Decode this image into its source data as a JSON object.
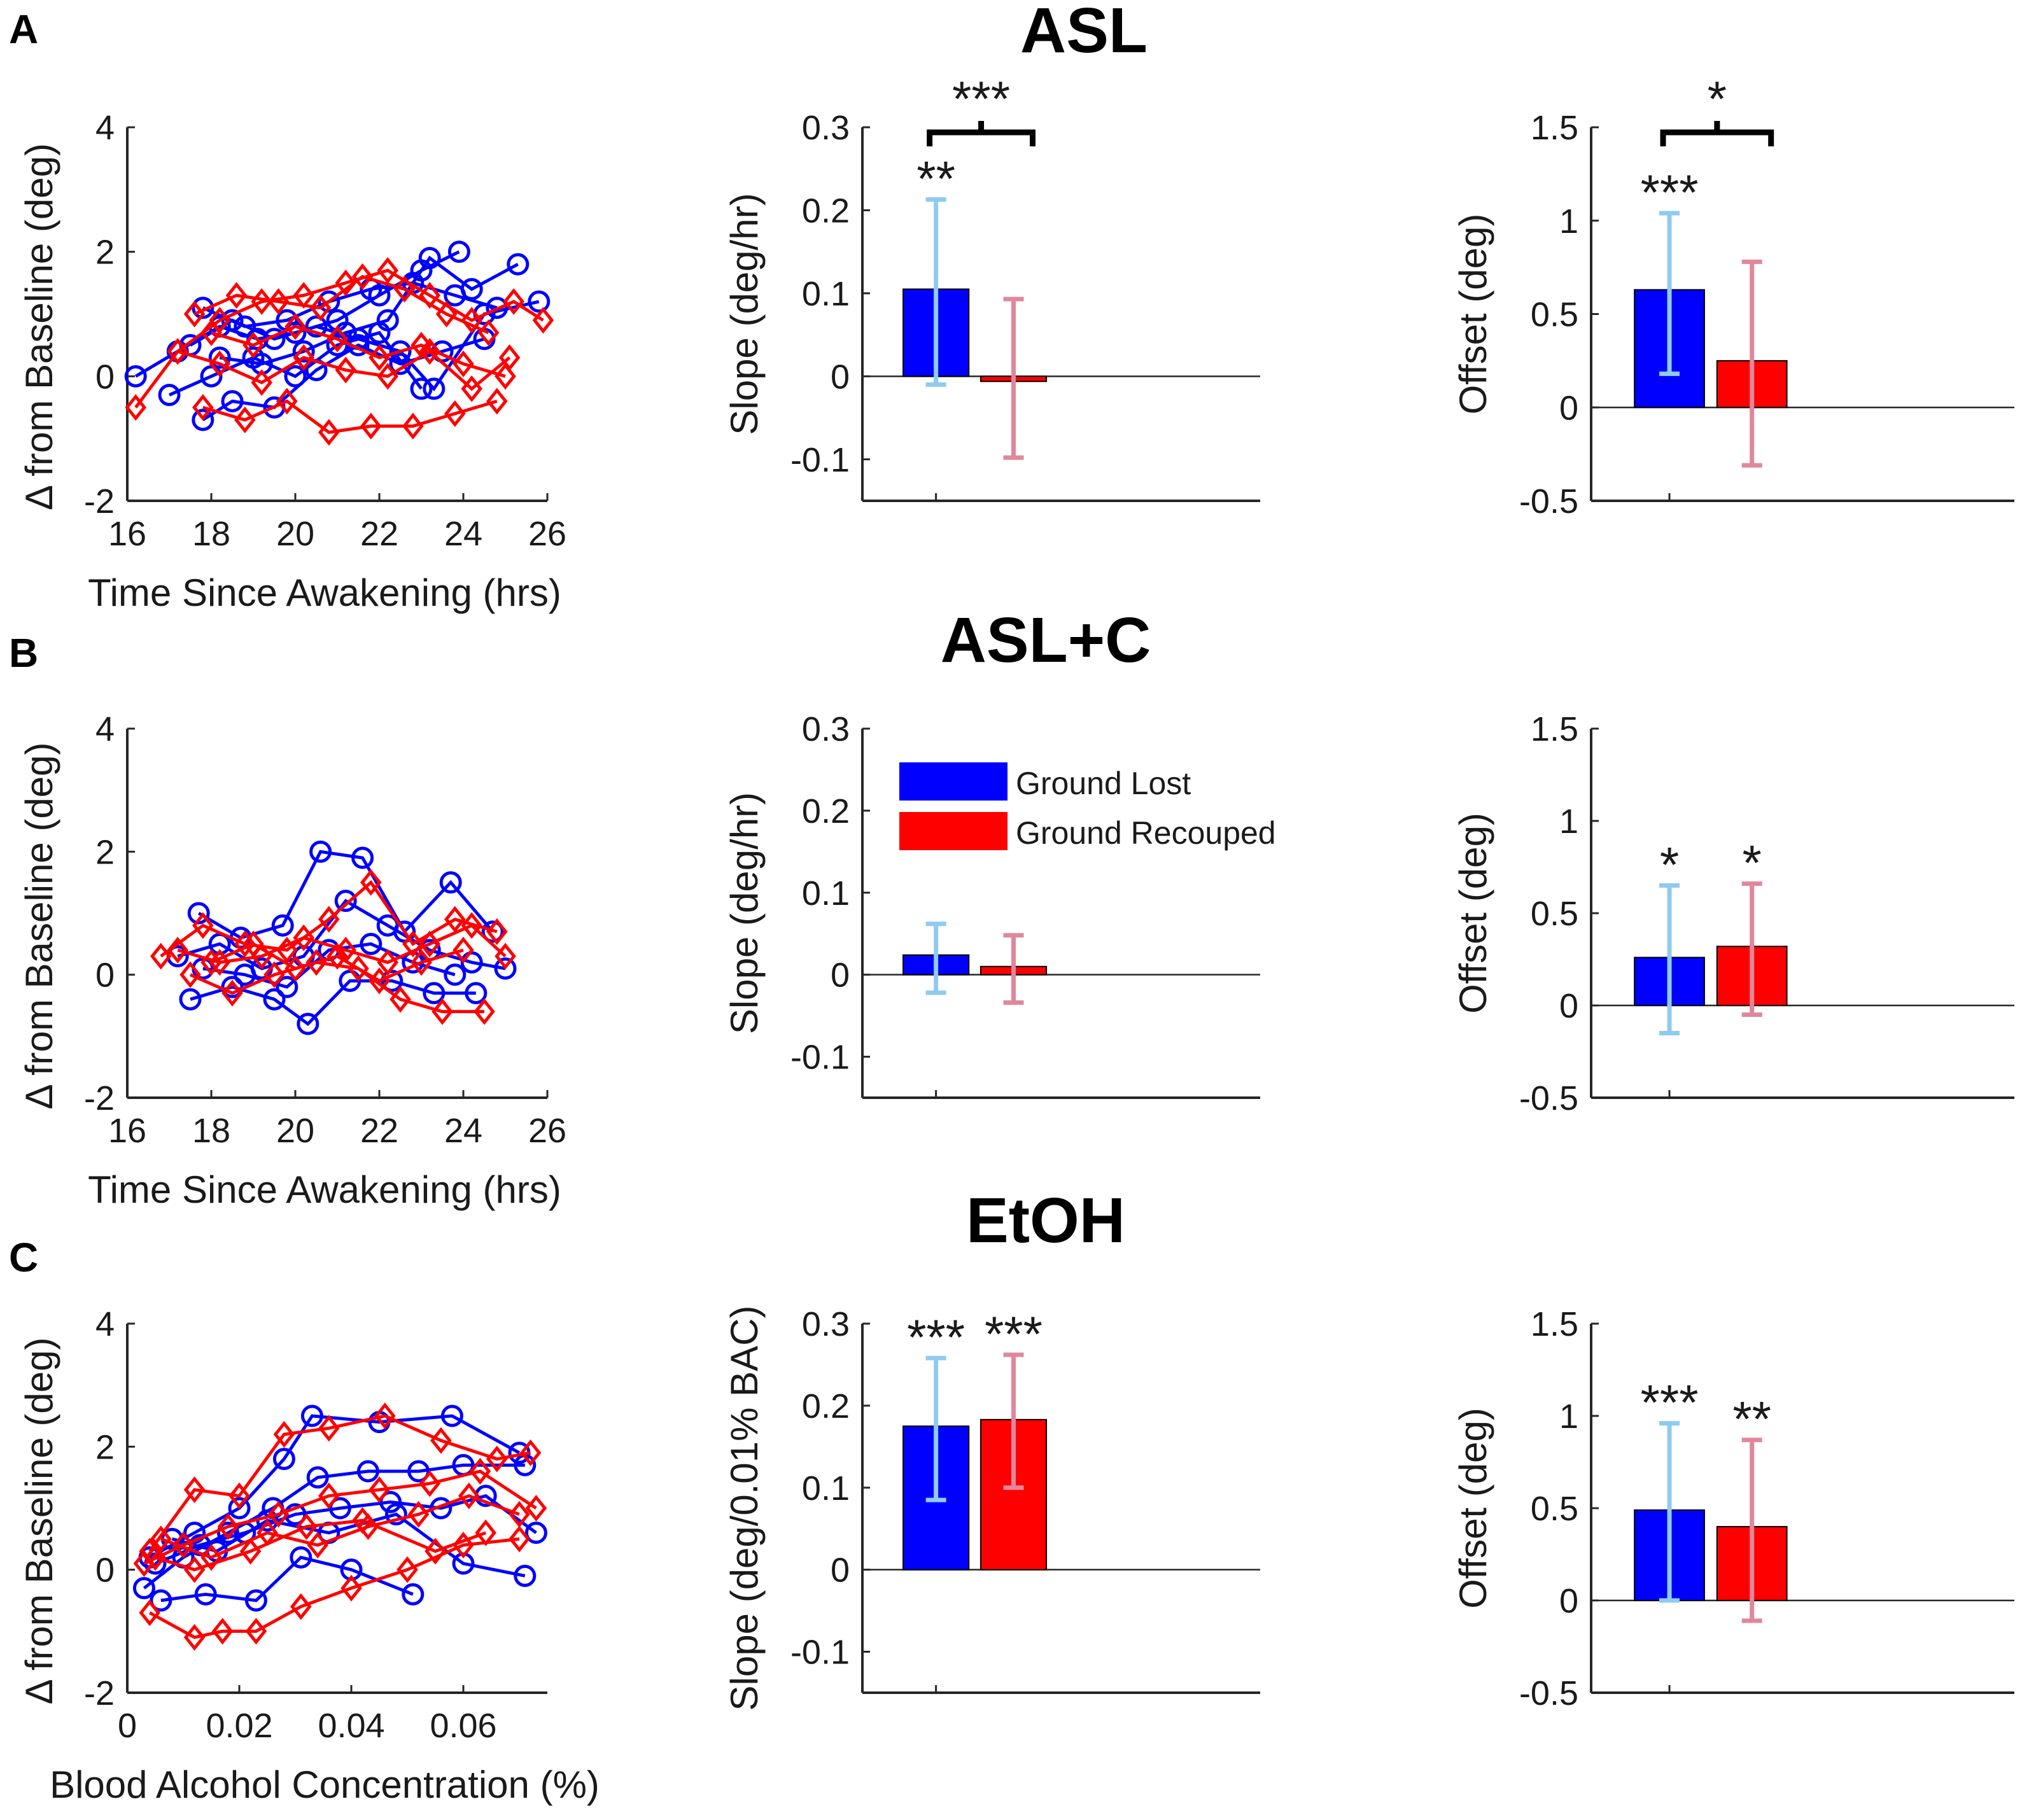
{
  "figure": {
    "alt": "Three rows of panels: ASL, ASL+C, EtOH"
  },
  "legend": {
    "entries": [
      {
        "label": "Ground Lost",
        "color": "#0000ff"
      },
      {
        "label": "Ground Recouped",
        "color": "#ff0000"
      }
    ]
  },
  "colors": {
    "lost": "#0000ff",
    "recouped": "#ff0000",
    "lost_err": "#8fcbef",
    "recouped_err": "#e0879c"
  },
  "chart_data": [
    {
      "id": "A-scatter",
      "panel": "A",
      "row_title": "ASL",
      "type": "line",
      "xlabel": "Time Since Awakening (hrs)",
      "ylabel": "Δ from Baseline (deg)",
      "xlim": [
        16,
        26
      ],
      "ylim": [
        -2,
        4
      ],
      "xticks": [
        "16",
        "18",
        "20",
        "22",
        "24",
        "26"
      ],
      "yticks": [
        "-2",
        "0",
        "2",
        "4"
      ],
      "series": [
        {
          "name": "Ground Lost",
          "color": "#0000ff",
          "marker": "circle",
          "x": [
            16.2,
            17.2,
            18.2,
            19.1,
            20.0,
            21.0,
            22.0,
            23.0,
            23.9
          ],
          "y": [
            0.0,
            0.4,
            0.8,
            0.6,
            0.7,
            0.9,
            1.3,
            1.7,
            2.0
          ]
        },
        {
          "name": "Ground Lost",
          "color": "#0000ff",
          "marker": "circle",
          "x": [
            17.8,
            18.8,
            19.8,
            20.8,
            21.8,
            22.8,
            23.8,
            24.8
          ],
          "y": [
            1.1,
            0.8,
            0.9,
            1.2,
            1.4,
            1.5,
            1.3,
            1.1
          ]
        },
        {
          "name": "Ground Lost",
          "color": "#0000ff",
          "marker": "circle",
          "x": [
            17.8,
            18.5,
            19.5,
            20.5,
            21.5,
            22.5,
            23.5,
            24.5
          ],
          "y": [
            -0.7,
            -0.4,
            -0.5,
            0.1,
            0.5,
            0.2,
            0.4,
            0.6
          ]
        },
        {
          "name": "Ground Lost",
          "color": "#0000ff",
          "marker": "circle",
          "x": [
            18.2,
            19.2,
            20.2,
            21.2,
            22.2,
            23.2,
            24.2,
            25.3
          ],
          "y": [
            0.3,
            0.2,
            0.4,
            0.7,
            0.9,
            1.9,
            1.4,
            1.8
          ]
        },
        {
          "name": "Ground Lost",
          "color": "#0000ff",
          "marker": "circle",
          "x": [
            17.5,
            18.5,
            19.5,
            20.5,
            21.5,
            22.5,
            23.3,
            24.5,
            25.8
          ],
          "y": [
            0.5,
            0.9,
            0.6,
            0.8,
            0.6,
            0.4,
            -0.2,
            1.0,
            1.2
          ]
        },
        {
          "name": "Ground Lost",
          "color": "#0000ff",
          "marker": "circle",
          "x": [
            17.0,
            18.0,
            19.0,
            20.0,
            21.0,
            22.0,
            23.0
          ],
          "y": [
            -0.3,
            0.0,
            0.3,
            0.0,
            0.5,
            0.7,
            -0.2
          ]
        },
        {
          "name": "Ground Recouped",
          "color": "#ff0000",
          "marker": "diamond",
          "x": [
            16.2,
            17.2,
            18.2,
            19.2,
            20.2,
            21.2,
            22.2,
            23.2,
            24.2,
            25.2,
            25.9
          ],
          "y": [
            -0.5,
            0.4,
            0.9,
            1.2,
            1.3,
            1.5,
            1.7,
            1.3,
            0.9,
            1.2,
            0.9
          ]
        },
        {
          "name": "Ground Recouped",
          "color": "#ff0000",
          "marker": "diamond",
          "x": [
            17.6,
            18.6,
            19.6,
            20.6,
            21.6,
            22.6,
            23.6,
            24.6
          ],
          "y": [
            1.0,
            1.3,
            1.2,
            1.1,
            1.6,
            1.4,
            1.0,
            0.7
          ]
        },
        {
          "name": "Ground Recouped",
          "color": "#ff0000",
          "marker": "diamond",
          "x": [
            17.8,
            18.8,
            19.8,
            20.8,
            21.8,
            22.8,
            23.8,
            24.8
          ],
          "y": [
            -0.5,
            -0.7,
            -0.4,
            -0.9,
            -0.8,
            -0.8,
            -0.6,
            -0.4
          ]
        },
        {
          "name": "Ground Recouped",
          "color": "#ff0000",
          "marker": "diamond",
          "x": [
            17.2,
            18.2,
            19.2,
            20.2,
            21.2,
            22.2,
            23.2,
            24.2,
            25.1
          ],
          "y": [
            0.4,
            0.2,
            -0.1,
            0.3,
            0.1,
            0.0,
            0.4,
            -0.2,
            0.3
          ]
        },
        {
          "name": "Ground Recouped",
          "color": "#ff0000",
          "marker": "diamond",
          "x": [
            18.0,
            19.0,
            20.0,
            21.0,
            22.0,
            23.0,
            24.0,
            25.0
          ],
          "y": [
            0.7,
            0.5,
            0.8,
            0.6,
            0.3,
            0.5,
            0.2,
            0.0
          ]
        }
      ]
    },
    {
      "id": "A-slope",
      "panel": "A",
      "type": "bar",
      "ylabel": "Slope (deg/hr)",
      "ylim": [
        -0.15,
        0.3
      ],
      "yticks": [
        "-0.1",
        "0",
        "0.1",
        "0.2",
        "0.3"
      ],
      "series": [
        {
          "name": "Ground Lost",
          "value": 0.105,
          "err_low": -0.01,
          "err_high": 0.213,
          "stars": "**"
        },
        {
          "name": "Ground Recouped",
          "value": -0.003,
          "err_low": -0.098,
          "err_high": 0.093,
          "stars": ""
        }
      ],
      "bracket_stars": "***"
    },
    {
      "id": "A-offset",
      "panel": "A",
      "type": "bar",
      "ylabel": "Offset (deg)",
      "ylim": [
        -0.5,
        1.5
      ],
      "yticks": [
        "-0.5",
        "0",
        "0.5",
        "1",
        "1.5"
      ],
      "series": [
        {
          "name": "Ground Lost",
          "value": 0.63,
          "err_low": 0.18,
          "err_high": 1.04,
          "stars": "***"
        },
        {
          "name": "Ground Recouped",
          "value": 0.25,
          "err_low": -0.31,
          "err_high": 0.78,
          "stars": ""
        }
      ],
      "bracket_stars": "*"
    },
    {
      "id": "B-scatter",
      "panel": "B",
      "row_title": "ASL+C",
      "type": "line",
      "xlabel": "Time Since Awakening (hrs)",
      "ylabel": "Δ from Baseline (deg)",
      "xlim": [
        16,
        26
      ],
      "ylim": [
        -2,
        4
      ],
      "xticks": [
        "16",
        "18",
        "20",
        "22",
        "24",
        "26"
      ],
      "yticks": [
        "-2",
        "0",
        "2",
        "4"
      ],
      "series": [
        {
          "name": "Ground Lost",
          "color": "#0000ff",
          "marker": "circle",
          "x": [
            17.7,
            18.7,
            19.7,
            20.6,
            21.6,
            22.6,
            23.7,
            24.7
          ],
          "y": [
            1.0,
            0.6,
            0.8,
            2.0,
            1.9,
            0.7,
            1.5,
            0.7
          ]
        },
        {
          "name": "Ground Lost",
          "color": "#0000ff",
          "marker": "circle",
          "x": [
            17.5,
            18.5,
            19.5,
            20.3,
            21.3,
            22.3,
            23.3,
            24.3
          ],
          "y": [
            -0.4,
            -0.2,
            -0.4,
            -0.8,
            -0.1,
            -0.1,
            -0.3,
            -0.3
          ]
        },
        {
          "name": "Ground Lost",
          "color": "#0000ff",
          "marker": "circle",
          "x": [
            17.2,
            18.2,
            19.2,
            20.2,
            21.2,
            22.2,
            23.2,
            24.2,
            25.0
          ],
          "y": [
            0.3,
            0.5,
            0.1,
            0.3,
            1.2,
            0.8,
            0.4,
            0.2,
            0.1
          ]
        },
        {
          "name": "Ground Lost",
          "color": "#0000ff",
          "marker": "circle",
          "x": [
            17.8,
            18.8,
            19.8,
            20.8,
            21.8,
            22.8,
            23.8
          ],
          "y": [
            0.1,
            0.0,
            -0.2,
            0.4,
            0.5,
            0.2,
            0.0
          ]
        },
        {
          "name": "Ground Recouped",
          "color": "#ff0000",
          "marker": "diamond",
          "x": [
            16.8,
            17.8,
            18.8,
            19.8,
            20.8,
            21.8,
            22.8,
            23.8,
            24.8
          ],
          "y": [
            0.3,
            0.8,
            0.5,
            0.4,
            0.9,
            1.5,
            0.5,
            0.9,
            0.7
          ]
        },
        {
          "name": "Ground Recouped",
          "color": "#ff0000",
          "marker": "diamond",
          "x": [
            17.5,
            18.5,
            19.5,
            20.5,
            21.5,
            22.5,
            23.5,
            24.5
          ],
          "y": [
            0.0,
            -0.3,
            0.0,
            0.2,
            0.1,
            -0.4,
            -0.6,
            -0.6
          ]
        },
        {
          "name": "Ground Recouped",
          "color": "#ff0000",
          "marker": "diamond",
          "x": [
            17.2,
            18.2,
            19.2,
            20.2,
            21.2,
            22.2,
            23.2,
            24.2,
            25.0
          ],
          "y": [
            0.4,
            0.2,
            0.3,
            0.6,
            0.4,
            0.2,
            0.5,
            0.8,
            0.3
          ]
        },
        {
          "name": "Ground Recouped",
          "color": "#ff0000",
          "marker": "diamond",
          "x": [
            18.0,
            19.0,
            20.0,
            21.0,
            22.0,
            23.0,
            24.0
          ],
          "y": [
            0.2,
            0.5,
            0.1,
            0.3,
            -0.1,
            0.2,
            0.4
          ]
        }
      ]
    },
    {
      "id": "B-slope",
      "panel": "B",
      "type": "bar",
      "ylabel": "Slope (deg/hr)",
      "ylim": [
        -0.15,
        0.3
      ],
      "yticks": [
        "-0.1",
        "0",
        "0.1",
        "0.2",
        "0.3"
      ],
      "series": [
        {
          "name": "Ground Lost",
          "value": 0.024,
          "err_low": -0.022,
          "err_high": 0.062,
          "stars": ""
        },
        {
          "name": "Ground Recouped",
          "value": 0.01,
          "err_low": -0.034,
          "err_high": 0.048,
          "stars": ""
        }
      ],
      "bracket_stars": ""
    },
    {
      "id": "B-offset",
      "panel": "B",
      "type": "bar",
      "ylabel": "Offset (deg)",
      "ylim": [
        -0.5,
        1.5
      ],
      "yticks": [
        "-0.5",
        "0",
        "0.5",
        "1",
        "1.5"
      ],
      "series": [
        {
          "name": "Ground Lost",
          "value": 0.26,
          "err_low": -0.15,
          "err_high": 0.65,
          "stars": "*"
        },
        {
          "name": "Ground Recouped",
          "value": 0.32,
          "err_low": -0.05,
          "err_high": 0.66,
          "stars": "*"
        }
      ],
      "bracket_stars": ""
    },
    {
      "id": "C-scatter",
      "panel": "C",
      "row_title": "EtOH",
      "type": "line",
      "xlabel": "Blood Alcohol Concentration (%)",
      "ylabel": "Δ from Baseline (deg)",
      "xlim": [
        0,
        0.075
      ],
      "ylim": [
        -2,
        4
      ],
      "xticks": [
        "0",
        "0.02",
        "0.04",
        "0.06"
      ],
      "xtickvals": [
        0,
        0.02,
        0.04,
        0.06
      ],
      "yticks": [
        "-2",
        "0",
        "2",
        "4"
      ],
      "series": [
        {
          "name": "Ground Lost",
          "color": "#0000ff",
          "marker": "circle",
          "x": [
            0.004,
            0.012,
            0.02,
            0.028,
            0.033,
            0.045,
            0.058,
            0.07
          ],
          "y": [
            0.2,
            0.6,
            1.0,
            1.8,
            2.5,
            2.4,
            2.5,
            1.9
          ]
        },
        {
          "name": "Ground Lost",
          "color": "#0000ff",
          "marker": "circle",
          "x": [
            0.003,
            0.01,
            0.018,
            0.026,
            0.034,
            0.043,
            0.052,
            0.06,
            0.071
          ],
          "y": [
            -0.3,
            0.2,
            0.6,
            1.0,
            1.5,
            1.6,
            1.6,
            1.7,
            1.7
          ]
        },
        {
          "name": "Ground Lost",
          "color": "#0000ff",
          "marker": "circle",
          "x": [
            0.006,
            0.014,
            0.023,
            0.031,
            0.04,
            0.051
          ],
          "y": [
            -0.5,
            -0.4,
            -0.5,
            0.2,
            0.0,
            -0.4
          ]
        },
        {
          "name": "Ground Lost",
          "color": "#0000ff",
          "marker": "circle",
          "x": [
            0.005,
            0.013,
            0.021,
            0.03,
            0.038,
            0.047,
            0.056,
            0.064,
            0.073
          ],
          "y": [
            0.1,
            0.4,
            0.6,
            0.9,
            1.0,
            1.1,
            1.0,
            1.2,
            0.6
          ]
        },
        {
          "name": "Ground Lost",
          "color": "#0000ff",
          "marker": "circle",
          "x": [
            0.008,
            0.016,
            0.025,
            0.036,
            0.048,
            0.06,
            0.071
          ],
          "y": [
            0.5,
            0.3,
            0.8,
            0.6,
            0.9,
            0.1,
            -0.1
          ]
        },
        {
          "name": "Ground Recouped",
          "color": "#ff0000",
          "marker": "diamond",
          "x": [
            0.004,
            0.012,
            0.02,
            0.028,
            0.036,
            0.046,
            0.056,
            0.066,
            0.072
          ],
          "y": [
            0.3,
            1.3,
            1.2,
            2.2,
            2.3,
            2.5,
            2.1,
            1.8,
            1.9
          ]
        },
        {
          "name": "Ground Recouped",
          "color": "#ff0000",
          "marker": "diamond",
          "x": [
            0.004,
            0.012,
            0.017,
            0.023,
            0.031,
            0.04,
            0.05,
            0.06,
            0.07
          ],
          "y": [
            -0.7,
            -1.1,
            -1.0,
            -1.0,
            -0.6,
            -0.3,
            0.0,
            0.4,
            0.5
          ]
        },
        {
          "name": "Ground Recouped",
          "color": "#ff0000",
          "marker": "diamond",
          "x": [
            0.003,
            0.01,
            0.018,
            0.027,
            0.036,
            0.045,
            0.054,
            0.063,
            0.073
          ],
          "y": [
            0.1,
            0.4,
            0.7,
            0.9,
            1.2,
            1.3,
            1.4,
            1.6,
            1.0
          ]
        },
        {
          "name": "Ground Recouped",
          "color": "#ff0000",
          "marker": "diamond",
          "x": [
            0.006,
            0.015,
            0.025,
            0.034,
            0.043,
            0.052,
            0.061,
            0.07
          ],
          "y": [
            0.5,
            0.2,
            0.6,
            0.4,
            0.7,
            0.9,
            1.2,
            0.9
          ]
        },
        {
          "name": "Ground Recouped",
          "color": "#ff0000",
          "marker": "diamond",
          "x": [
            0.005,
            0.012,
            0.022,
            0.032,
            0.042,
            0.055,
            0.064
          ],
          "y": [
            0.2,
            0.0,
            0.3,
            0.7,
            0.8,
            0.3,
            0.6
          ]
        }
      ]
    },
    {
      "id": "C-slope",
      "panel": "C",
      "type": "bar",
      "ylabel": "Slope (deg/0.01% BAC)",
      "ylim": [
        -0.15,
        0.3
      ],
      "yticks": [
        "-0.1",
        "0",
        "0.1",
        "0.2",
        "0.3"
      ],
      "series": [
        {
          "name": "Ground Lost",
          "value": 0.175,
          "err_low": 0.085,
          "err_high": 0.258,
          "stars": "***"
        },
        {
          "name": "Ground Recouped",
          "value": 0.183,
          "err_low": 0.1,
          "err_high": 0.262,
          "stars": "***"
        }
      ],
      "bracket_stars": ""
    },
    {
      "id": "C-offset",
      "panel": "C",
      "type": "bar",
      "ylabel": "Offset (deg)",
      "ylim": [
        -0.5,
        1.5
      ],
      "yticks": [
        "-0.5",
        "0",
        "0.5",
        "1",
        "1.5"
      ],
      "series": [
        {
          "name": "Ground Lost",
          "value": 0.49,
          "err_low": 0.0,
          "err_high": 0.96,
          "stars": "***"
        },
        {
          "name": "Ground Recouped",
          "value": 0.4,
          "err_low": -0.11,
          "err_high": 0.87,
          "stars": "**"
        }
      ],
      "bracket_stars": ""
    }
  ]
}
